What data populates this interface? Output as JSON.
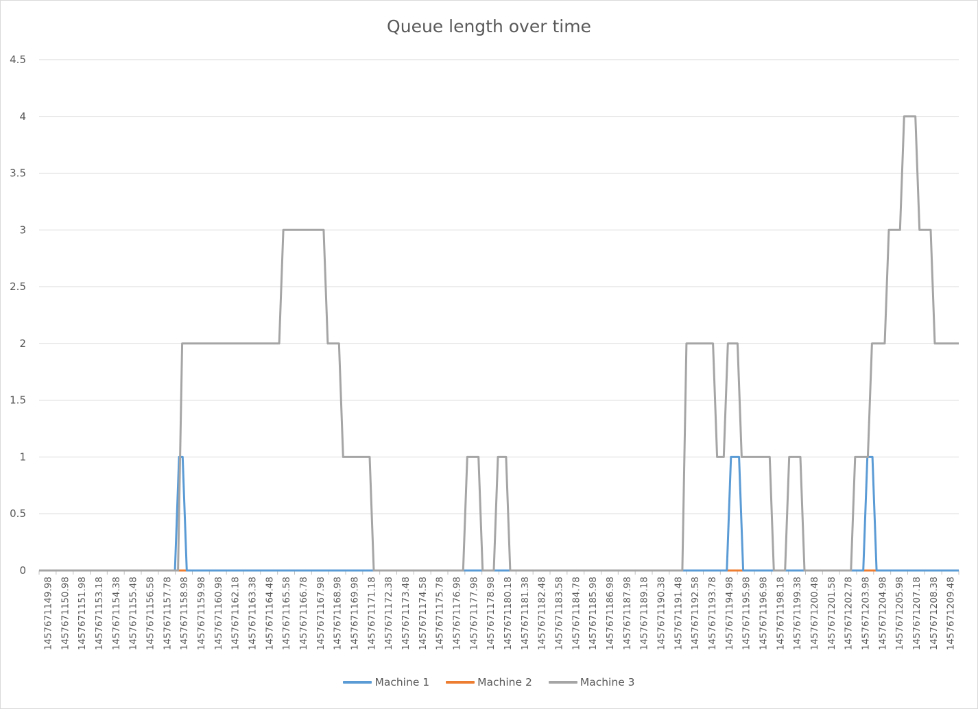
{
  "chart_data": {
    "type": "line",
    "title": "Queue length over time",
    "xlabel": "",
    "ylabel": "",
    "ylim": [
      0,
      4.5
    ],
    "yticks": [
      "0",
      "0.5",
      "1",
      "1.5",
      "2",
      "2.5",
      "3",
      "3.5",
      "4",
      "4.5"
    ],
    "grid": true,
    "legend_position": "bottom",
    "x_tick_labels": [
      "1457671149.98",
      "1457671150.98",
      "1457671151.98",
      "1457671153.18",
      "1457671154.38",
      "1457671155.48",
      "1457671156.58",
      "1457671157.78",
      "1457671158.98",
      "1457671159.98",
      "1457671160.98",
      "1457671162.18",
      "1457671163.38",
      "1457671164.48",
      "1457671165.58",
      "1457671166.78",
      "1457671167.98",
      "1457671168.98",
      "1457671169.98",
      "1457671171.18",
      "1457671172.38",
      "1457671173.48",
      "1457671174.58",
      "1457671175.78",
      "1457671176.98",
      "1457671177.98",
      "1457671178.98",
      "1457671180.18",
      "1457671181.38",
      "1457671182.48",
      "1457671183.58",
      "1457671184.78",
      "1457671185.98",
      "1457671186.98",
      "1457671187.98",
      "1457671189.18",
      "1457671190.38",
      "1457671191.48",
      "1457671192.58",
      "1457671193.78",
      "1457671194.98",
      "1457671195.98",
      "1457671196.98",
      "1457671198.18",
      "1457671199.38",
      "1457671200.48",
      "1457671201.58",
      "1457671202.78",
      "1457671203.98",
      "1457671204.98",
      "1457671205.98",
      "1457671207.18",
      "1457671208.38",
      "1457671209.48"
    ],
    "series": [
      {
        "name": "Machine 1",
        "color": "#5b9bd5",
        "steps": [
          [
            1457671149.98,
            0
          ],
          [
            1457671158.98,
            1
          ],
          [
            1457671159.48,
            0
          ],
          [
            1457671194.98,
            1
          ],
          [
            1457671195.78,
            0
          ],
          [
            1457671203.88,
            1
          ],
          [
            1457671204.48,
            0
          ],
          [
            1457671209.98,
            0
          ]
        ]
      },
      {
        "name": "Machine 2",
        "color": "#ed7d31",
        "steps": [
          [
            1457671149.98,
            0
          ],
          [
            1457671209.98,
            0
          ]
        ]
      },
      {
        "name": "Machine 3",
        "color": "#a5a5a5",
        "steps": [
          [
            1457671149.98,
            0
          ],
          [
            1457671159.18,
            2
          ],
          [
            1457671165.78,
            3
          ],
          [
            1457671168.68,
            2
          ],
          [
            1457671169.68,
            1
          ],
          [
            1457671171.68,
            0
          ],
          [
            1457671177.78,
            1
          ],
          [
            1457671178.78,
            0
          ],
          [
            1457671179.78,
            1
          ],
          [
            1457671180.58,
            0
          ],
          [
            1457671192.08,
            2
          ],
          [
            1457671194.08,
            1
          ],
          [
            1457671194.78,
            2
          ],
          [
            1457671195.68,
            1
          ],
          [
            1457671197.78,
            0
          ],
          [
            1457671198.78,
            1
          ],
          [
            1457671199.78,
            0
          ],
          [
            1457671203.08,
            1
          ],
          [
            1457671204.18,
            2
          ],
          [
            1457671205.28,
            3
          ],
          [
            1457671206.28,
            4
          ],
          [
            1457671207.28,
            3
          ],
          [
            1457671208.28,
            2
          ],
          [
            1457671209.98,
            2
          ]
        ]
      }
    ]
  }
}
